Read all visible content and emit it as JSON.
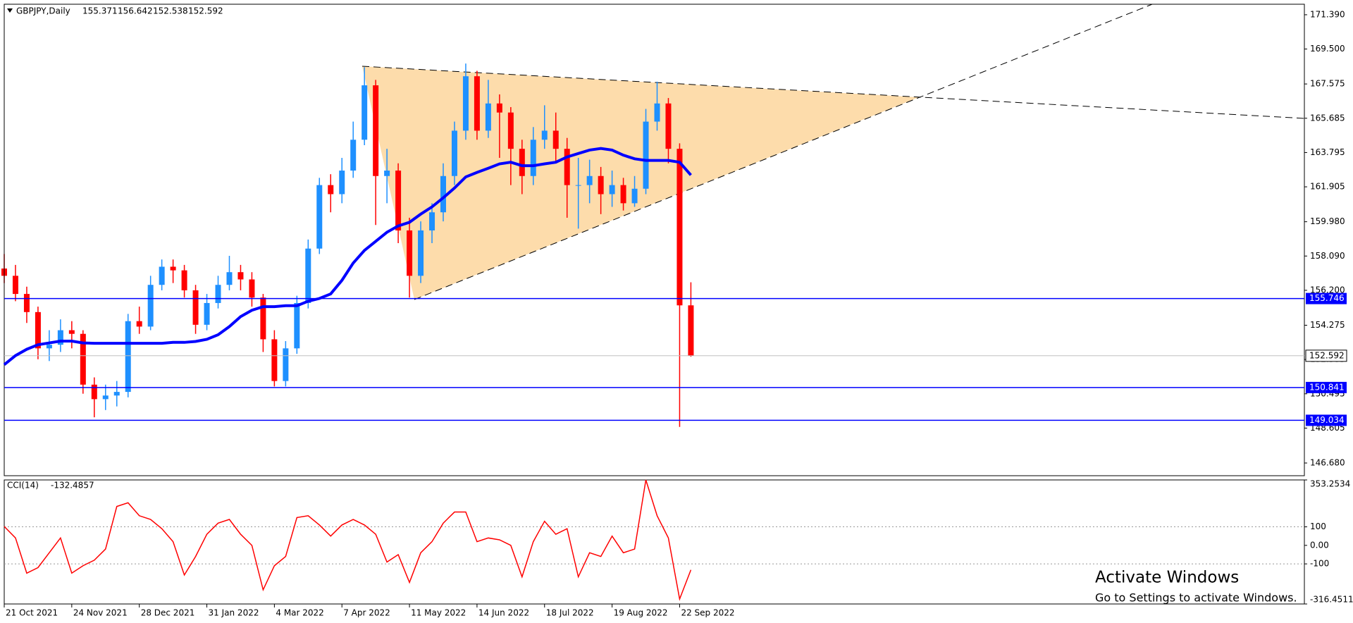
{
  "chart_data": [
    {
      "type": "candlestick",
      "title": "GBPJPY,Daily",
      "bull_color": "#1e90ff",
      "bear_color": "#ff0000",
      "x": [
        0,
        4,
        8,
        12,
        16,
        20,
        24,
        28,
        32,
        36,
        40,
        44,
        48,
        52,
        56,
        60,
        64,
        68,
        72,
        76,
        80,
        84,
        88,
        92,
        96,
        100,
        104,
        108,
        112,
        116,
        120,
        124,
        128,
        132,
        136,
        140,
        144,
        148,
        152,
        156,
        160,
        164,
        168,
        172,
        176,
        180,
        184,
        188,
        192,
        196,
        200,
        204,
        208,
        212,
        216,
        220,
        224,
        228,
        232,
        236,
        240,
        244
      ],
      "open": [
        157.4,
        157.0,
        156.0,
        155.0,
        153.0,
        153.2,
        154.0,
        153.8,
        151.0,
        150.2,
        150.4,
        150.6,
        154.5,
        154.2,
        156.5,
        157.5,
        157.3,
        156.2,
        154.3,
        155.5,
        156.5,
        157.2,
        156.8,
        155.8,
        153.5,
        151.2,
        153.0,
        155.5,
        158.5,
        162.0,
        161.5,
        162.8,
        164.5,
        167.5,
        162.5,
        162.8,
        159.5,
        157.0,
        159.5,
        160.5,
        162.5,
        165.0,
        168.0,
        165.0,
        166.5,
        166.0,
        164.0,
        162.5,
        164.5,
        165.0,
        164.0,
        162.0,
        162.0,
        162.5,
        161.5,
        162.0,
        161.0,
        161.8,
        165.5,
        166.5,
        164.0,
        155.371
      ],
      "high": [
        158.2,
        157.6,
        156.4,
        155.3,
        154.0,
        154.6,
        154.5,
        154.0,
        151.4,
        151.0,
        151.2,
        154.9,
        155.3,
        157.0,
        157.9,
        157.9,
        157.6,
        156.5,
        156.0,
        157.0,
        158.1,
        157.6,
        157.2,
        156.0,
        154.0,
        153.4,
        155.9,
        159.0,
        162.4,
        162.6,
        163.5,
        165.5,
        168.5,
        167.8,
        164.0,
        163.2,
        160.2,
        160.0,
        161.0,
        163.2,
        165.5,
        168.7,
        168.3,
        167.8,
        167.0,
        166.3,
        164.5,
        165.2,
        166.4,
        166.0,
        164.6,
        163.5,
        163.4,
        163.0,
        162.8,
        162.4,
        162.5,
        166.2,
        167.7,
        166.8,
        164.3,
        156.642
      ],
      "low": [
        156.6,
        155.6,
        154.4,
        152.4,
        152.3,
        152.8,
        153.0,
        150.5,
        149.2,
        149.6,
        149.8,
        150.3,
        153.8,
        154.0,
        156.2,
        156.6,
        155.8,
        153.8,
        154.0,
        155.2,
        156.2,
        156.2,
        155.3,
        152.8,
        150.9,
        150.9,
        152.7,
        155.2,
        158.2,
        160.5,
        161.0,
        162.4,
        164.2,
        159.8,
        161.0,
        158.8,
        155.8,
        156.6,
        158.8,
        160.0,
        162.0,
        164.5,
        164.5,
        164.6,
        163.5,
        162.0,
        161.5,
        162.0,
        164.0,
        163.2,
        160.2,
        159.6,
        161.0,
        160.4,
        160.8,
        160.6,
        160.8,
        161.5,
        165.0,
        163.2,
        148.67,
        152.538
      ],
      "close": [
        157.0,
        156.0,
        155.0,
        153.0,
        153.2,
        154.0,
        153.8,
        151.0,
        150.2,
        150.4,
        150.6,
        154.5,
        154.2,
        156.5,
        157.5,
        157.3,
        156.2,
        154.3,
        155.5,
        156.5,
        157.2,
        156.8,
        155.8,
        153.5,
        151.2,
        153.0,
        155.5,
        158.5,
        162.0,
        161.5,
        162.8,
        164.5,
        167.5,
        162.5,
        162.8,
        159.5,
        157.0,
        159.5,
        160.5,
        162.5,
        165.0,
        168.0,
        165.0,
        166.5,
        166.0,
        164.0,
        162.5,
        164.5,
        165.0,
        164.0,
        162.0,
        162.0,
        162.5,
        161.5,
        162.0,
        161.0,
        161.8,
        165.5,
        166.5,
        164.0,
        155.371,
        152.592
      ],
      "ma": {
        "color": "#0000ff",
        "values": [
          152.1,
          152.6,
          152.95,
          153.2,
          153.3,
          153.4,
          153.4,
          153.3,
          153.28,
          153.28,
          153.28,
          153.28,
          153.28,
          153.28,
          153.28,
          153.33,
          153.33,
          153.38,
          153.5,
          153.75,
          154.2,
          154.75,
          155.1,
          155.3,
          155.3,
          155.35,
          155.35,
          155.6,
          155.75,
          156.0,
          156.75,
          157.7,
          158.4,
          158.9,
          159.4,
          159.75,
          159.95,
          160.4,
          160.8,
          161.3,
          161.84,
          162.45,
          162.7,
          162.93,
          163.17,
          163.26,
          163.07,
          163.07,
          163.17,
          163.26,
          163.55,
          163.74,
          163.93,
          164.02,
          163.93,
          163.65,
          163.45,
          163.36,
          163.36,
          163.36,
          163.26,
          162.55
        ]
      },
      "levels": [
        {
          "value": 155.746,
          "color": "#0000ff"
        },
        {
          "value": 150.841,
          "color": "#0000ff"
        },
        {
          "value": 149.034,
          "color": "#0000ff"
        }
      ],
      "last_price": 152.592,
      "xlim": [
        0,
        462
      ],
      "xticks": [
        {
          "value": 0,
          "label": "21 Oct 2021"
        },
        {
          "value": 24,
          "label": "24 Nov 2021"
        },
        {
          "value": 48,
          "label": "28 Dec 2021"
        },
        {
          "value": 72,
          "label": "31 Jan 2022"
        },
        {
          "value": 96,
          "label": "4 Mar 2022"
        },
        {
          "value": 120,
          "label": "7 Apr 2022"
        },
        {
          "value": 144,
          "label": "11 May 2022"
        },
        {
          "value": 168,
          "label": "14 Jun 2022"
        },
        {
          "value": 192,
          "label": "18 Jul 2022"
        },
        {
          "value": 216,
          "label": "19 Aug 2022"
        },
        {
          "value": 240,
          "label": "22 Sep 2022"
        }
      ],
      "ylim": [
        145.98,
        171.97
      ],
      "yticks": [
        {
          "value": 171.39,
          "label": "171.390"
        },
        {
          "value": 169.5,
          "label": "169.500"
        },
        {
          "value": 167.575,
          "label": "167.575"
        },
        {
          "value": 165.685,
          "label": "165.685"
        },
        {
          "value": 163.795,
          "label": "163.795"
        },
        {
          "value": 161.905,
          "label": "161.905"
        },
        {
          "value": 159.98,
          "label": "159.980"
        },
        {
          "value": 158.09,
          "label": "158.090"
        },
        {
          "value": 156.2,
          "label": "156.200"
        },
        {
          "value": 154.275,
          "label": "154.275"
        },
        {
          "value": 152.385,
          "label": "152.385"
        },
        {
          "value": 150.495,
          "label": "150.495"
        },
        {
          "value": 148.605,
          "label": "148.605"
        },
        {
          "value": 146.68,
          "label": "146.680"
        }
      ]
    },
    {
      "type": "line",
      "title": "CCI(14)",
      "color": "#ff0000",
      "values": [
        102,
        40,
        -150,
        -120,
        -40,
        40,
        -150,
        -110,
        -80,
        -20,
        210,
        230,
        160,
        140,
        90,
        20,
        -160,
        -60,
        60,
        120,
        140,
        60,
        0,
        -240,
        -110,
        -60,
        150,
        160,
        110,
        50,
        110,
        140,
        110,
        60,
        -90,
        -50,
        -200,
        -40,
        20,
        120,
        180,
        180,
        20,
        40,
        30,
        0,
        -170,
        20,
        130,
        60,
        90,
        -170,
        -40,
        -60,
        50,
        -40,
        -20,
        353.2534,
        160,
        40,
        -290,
        -132.4857
      ],
      "ylim": [
        -316.4511,
        353.2534
      ],
      "yticks": [
        353.2534,
        100,
        {
          "value": 0,
          "label": "0.00"
        },
        -100,
        -316.4511
      ],
      "levels": [
        100,
        -100
      ]
    }
  ],
  "watermark": {
    "title": "Activate Windows",
    "subtitle": "Go to Settings to activate Windows."
  }
}
